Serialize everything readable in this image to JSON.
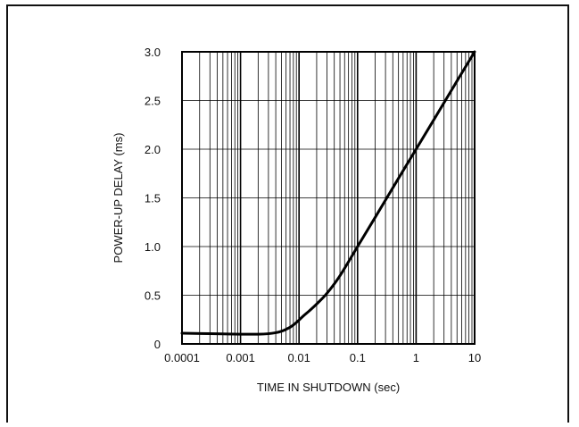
{
  "chart_data": {
    "type": "line",
    "xscale": "log",
    "xlim": [
      0.0001,
      10
    ],
    "ylim": [
      0,
      3.0
    ],
    "xlabel": "TIME IN SHUTDOWN (sec)",
    "ylabel": "POWER-UP DELAY (ms)",
    "xticks": [
      {
        "value": 0.0001,
        "label": "0.0001"
      },
      {
        "value": 0.001,
        "label": "0.001"
      },
      {
        "value": 0.01,
        "label": "0.01"
      },
      {
        "value": 0.1,
        "label": "0.1"
      },
      {
        "value": 1,
        "label": "1"
      },
      {
        "value": 10,
        "label": "10"
      }
    ],
    "yticks": [
      {
        "value": 0,
        "label": "0"
      },
      {
        "value": 0.5,
        "label": "0.5"
      },
      {
        "value": 1.0,
        "label": "1.0"
      },
      {
        "value": 1.5,
        "label": "1.5"
      },
      {
        "value": 2.0,
        "label": "2.0"
      },
      {
        "value": 2.5,
        "label": "2.5"
      },
      {
        "value": 3.0,
        "label": "3.0"
      }
    ],
    "grid": true,
    "series": [
      {
        "x": [
          0.0001,
          0.0003,
          0.001,
          0.002,
          0.003,
          0.004,
          0.005,
          0.006,
          0.007,
          0.008,
          0.009,
          0.01,
          0.012,
          0.015,
          0.02,
          0.03,
          0.05,
          0.1,
          0.2,
          0.5,
          1,
          2,
          5,
          10
        ],
        "y": [
          0.11,
          0.105,
          0.1,
          0.1,
          0.105,
          0.115,
          0.13,
          0.15,
          0.17,
          0.195,
          0.22,
          0.245,
          0.29,
          0.34,
          0.41,
          0.52,
          0.7,
          1.0,
          1.3,
          1.7,
          2.0,
          2.3,
          2.7,
          3.0
        ],
        "color": "#000000"
      }
    ]
  }
}
